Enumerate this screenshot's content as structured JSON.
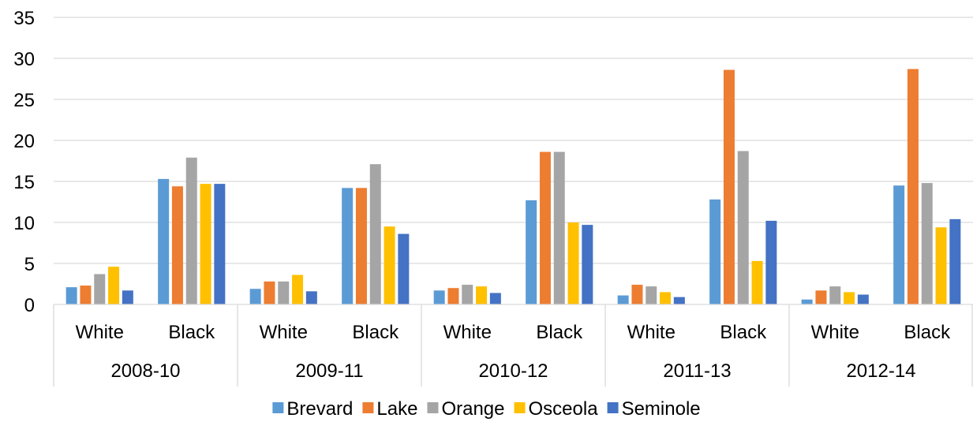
{
  "chart_data": {
    "type": "bar",
    "title": "",
    "xlabel": "",
    "ylabel": "",
    "ylim": [
      0,
      35
    ],
    "yticks": [
      0,
      5,
      10,
      15,
      20,
      25,
      30,
      35
    ],
    "grid": true,
    "legend_position": "bottom",
    "groups": [
      {
        "label": "2008-10",
        "categories": [
          "White",
          "Black"
        ]
      },
      {
        "label": "2009-11",
        "categories": [
          "White",
          "Black"
        ]
      },
      {
        "label": "2010-12",
        "categories": [
          "White",
          "Black"
        ]
      },
      {
        "label": "2011-13",
        "categories": [
          "White",
          "Black"
        ]
      },
      {
        "label": "2012-14",
        "categories": [
          "White",
          "Black"
        ]
      }
    ],
    "categories": [
      "2008-10 White",
      "2008-10 Black",
      "2009-11 White",
      "2009-11 Black",
      "2010-12 White",
      "2010-12 Black",
      "2011-13 White",
      "2011-13 Black",
      "2012-14 White",
      "2012-14 Black"
    ],
    "series": [
      {
        "name": "Brevard",
        "color": "#5B9BD5",
        "values": [
          2.1,
          15.3,
          1.9,
          14.2,
          1.7,
          12.7,
          1.1,
          12.8,
          0.6,
          14.5
        ]
      },
      {
        "name": "Lake",
        "color": "#ED7D31",
        "values": [
          2.3,
          14.4,
          2.8,
          14.2,
          2.0,
          18.6,
          2.4,
          28.6,
          1.7,
          28.7
        ]
      },
      {
        "name": "Orange",
        "color": "#A5A5A5",
        "values": [
          3.7,
          17.9,
          2.8,
          17.1,
          2.4,
          18.6,
          2.2,
          18.7,
          2.2,
          14.8
        ]
      },
      {
        "name": "Osceola",
        "color": "#FFC000",
        "values": [
          4.6,
          14.7,
          3.6,
          9.5,
          2.2,
          10.0,
          1.5,
          5.3,
          1.5,
          9.4
        ]
      },
      {
        "name": "Seminole",
        "color": "#4472C4",
        "values": [
          1.7,
          14.7,
          1.6,
          8.6,
          1.4,
          9.7,
          0.9,
          10.2,
          1.2,
          10.4
        ]
      }
    ]
  }
}
